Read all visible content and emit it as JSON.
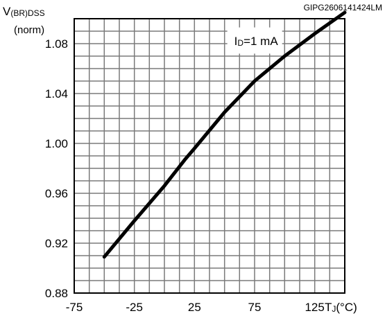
{
  "chart_data": {
    "type": "line",
    "figure_code": "GIPG2606141424LM",
    "ylabel_main": "V",
    "ylabel_sub": "(BR)DSS",
    "ylabel_unit": "(norm)",
    "xlabel_main": "T",
    "xlabel_sub": "J",
    "xlabel_unit": "(°C)",
    "annotation_main": "I",
    "annotation_sub": "D",
    "annotation_value": "=1 mA",
    "xlim": [
      -75,
      150
    ],
    "ylim": [
      0.88,
      1.1
    ],
    "x_ticks": [
      -75,
      -25,
      25,
      75,
      125
    ],
    "x_tick_labels": [
      "-75",
      "-25",
      "25",
      "75",
      "125"
    ],
    "y_ticks": [
      0.88,
      0.92,
      0.96,
      1.0,
      1.04,
      1.08
    ],
    "y_tick_labels": [
      "0.88",
      "0.92",
      "0.96",
      "1.00",
      "1.04",
      "1.08"
    ],
    "grid": true,
    "series": [
      {
        "x": [
          -50,
          -25,
          0,
          17,
          25,
          50,
          75,
          100,
          125,
          150
        ],
        "y": [
          0.909,
          0.938,
          0.966,
          0.987,
          0.996,
          1.025,
          1.05,
          1.07,
          1.088,
          1.105
        ]
      }
    ]
  }
}
